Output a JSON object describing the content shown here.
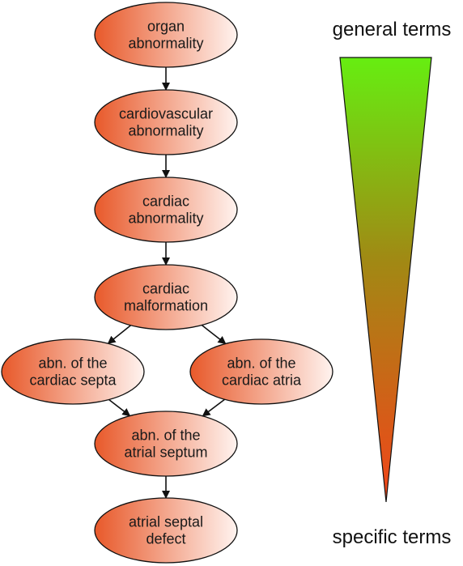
{
  "colors": {
    "node_fill_dark": "#e8592a",
    "node_fill_light": "#fff3ef",
    "node_stroke": "#111111",
    "edge": "#111111",
    "wedge_top": "#66ee11",
    "wedge_mid": "#a08a14",
    "wedge_bottom": "#f2441a"
  },
  "nodes": [
    {
      "id": "organ-abnormality",
      "lines": [
        "organ",
        "abnormality"
      ]
    },
    {
      "id": "cardiovascular-abnormality",
      "lines": [
        "cardiovascular",
        "abnormality"
      ]
    },
    {
      "id": "cardiac-abnormality",
      "lines": [
        "cardiac",
        "abnormality"
      ]
    },
    {
      "id": "cardiac-malformation",
      "lines": [
        "cardiac",
        "malformation"
      ]
    },
    {
      "id": "abn-cardiac-septa",
      "lines": [
        "abn. of the",
        "cardiac septa"
      ]
    },
    {
      "id": "abn-cardiac-atria",
      "lines": [
        "abn. of the",
        "cardiac atria"
      ]
    },
    {
      "id": "abn-atrial-septum",
      "lines": [
        "abn. of the",
        "atrial septum"
      ]
    },
    {
      "id": "atrial-septal-defect",
      "lines": [
        "atrial septal",
        "defect"
      ]
    }
  ],
  "edges": [
    [
      "organ-abnormality",
      "cardiovascular-abnormality"
    ],
    [
      "cardiovascular-abnormality",
      "cardiac-abnormality"
    ],
    [
      "cardiac-abnormality",
      "cardiac-malformation"
    ],
    [
      "cardiac-malformation",
      "abn-cardiac-septa"
    ],
    [
      "cardiac-malformation",
      "abn-cardiac-atria"
    ],
    [
      "abn-cardiac-septa",
      "abn-atrial-septum"
    ],
    [
      "abn-cardiac-atria",
      "abn-atrial-septum"
    ],
    [
      "abn-atrial-septum",
      "atrial-septal-defect"
    ]
  ],
  "scale": {
    "top_label": "general terms",
    "bottom_label": "specific terms"
  }
}
